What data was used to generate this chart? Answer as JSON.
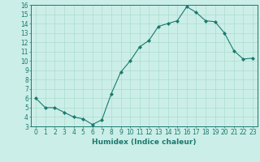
{
  "x": [
    0,
    1,
    2,
    3,
    4,
    5,
    6,
    7,
    8,
    9,
    10,
    11,
    12,
    13,
    14,
    15,
    16,
    17,
    18,
    19,
    20,
    21,
    22,
    23
  ],
  "y": [
    6.0,
    5.0,
    5.0,
    4.5,
    4.0,
    3.8,
    3.2,
    3.7,
    6.5,
    8.8,
    10.0,
    11.5,
    12.2,
    13.7,
    14.0,
    14.3,
    15.8,
    15.2,
    14.3,
    14.2,
    13.0,
    11.1,
    10.2,
    10.3
  ],
  "line_color": "#1a7a6e",
  "marker": "D",
  "marker_size": 2.0,
  "bg_color": "#cceee8",
  "grid_color": "#aaddcc",
  "xlabel": "Humidex (Indice chaleur)",
  "xlim": [
    -0.5,
    23.5
  ],
  "ylim": [
    3,
    16
  ],
  "yticks": [
    3,
    4,
    5,
    6,
    7,
    8,
    9,
    10,
    11,
    12,
    13,
    14,
    15,
    16
  ],
  "xticks": [
    0,
    1,
    2,
    3,
    4,
    5,
    6,
    7,
    8,
    9,
    10,
    11,
    12,
    13,
    14,
    15,
    16,
    17,
    18,
    19,
    20,
    21,
    22,
    23
  ],
  "label_fontsize": 6.5,
  "tick_fontsize": 5.5
}
